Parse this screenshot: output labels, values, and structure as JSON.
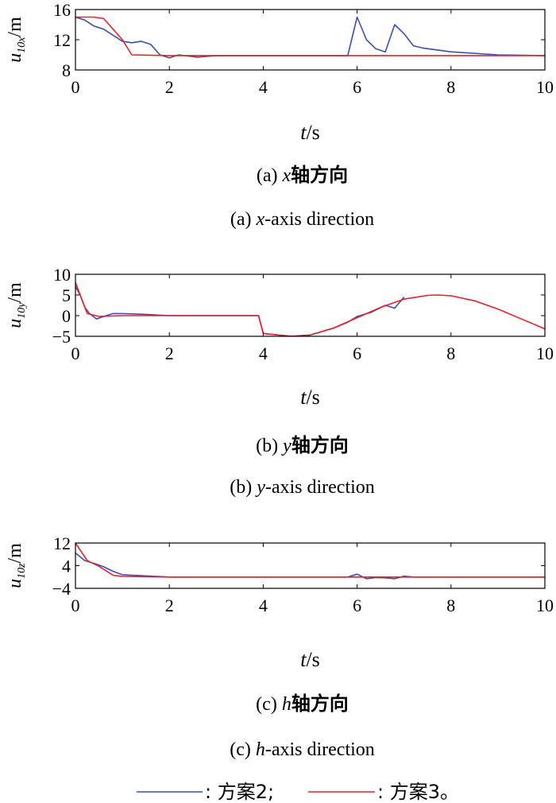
{
  "colors": {
    "series2": "#3a4fb0",
    "series3": "#e8202a",
    "axis": "#000000"
  },
  "legend": {
    "items": [
      {
        "label": ": 方案2;",
        "color": "#3a4fb0"
      },
      {
        "label": ": 方案3。",
        "color": "#e8202a"
      }
    ]
  },
  "chart_data": [
    {
      "type": "line",
      "ylabel": {
        "base": "u",
        "sub": "10x",
        "unit": "/m"
      },
      "xlabel": {
        "var": "t",
        "unit": "/s"
      },
      "caption_cn": {
        "prefix": "(a) ",
        "var": "x",
        "text": "轴方向"
      },
      "caption_en": {
        "prefix": "(a) ",
        "var": "x",
        "text": "-axis direction"
      },
      "xlim": [
        0,
        10
      ],
      "ylim": [
        8,
        16
      ],
      "xticks": [
        "0",
        "2",
        "4",
        "6",
        "8",
        "10"
      ],
      "yticks": [
        {
          "v": 8,
          "label": "8"
        },
        {
          "v": 12,
          "label": "12"
        },
        {
          "v": 16,
          "label": "16"
        }
      ],
      "series": [
        {
          "x": [
            0,
            0.2,
            0.4,
            0.6,
            0.8,
            1.0,
            1.2,
            1.4,
            1.6,
            1.8,
            2.0,
            2.2,
            2.6,
            3.0,
            5.8,
            6.0,
            6.2,
            6.4,
            6.6,
            6.8,
            7.0,
            7.2,
            7.4,
            8.0,
            9.0,
            10.0
          ],
          "y": [
            15.0,
            14.6,
            13.8,
            13.4,
            12.6,
            11.8,
            11.6,
            11.8,
            11.4,
            10.0,
            9.6,
            10.0,
            9.7,
            9.9,
            9.9,
            15.0,
            12.0,
            10.8,
            10.4,
            14.0,
            12.8,
            11.2,
            10.9,
            10.4,
            10.0,
            9.9
          ]
        },
        {
          "x": [
            0,
            0.4,
            0.6,
            1.0,
            1.2,
            2.0,
            10.0
          ],
          "y": [
            15.0,
            15.0,
            14.8,
            12.0,
            10.0,
            9.9,
            9.9
          ]
        }
      ]
    },
    {
      "type": "line",
      "ylabel": {
        "base": "u",
        "sub": "10y",
        "unit": "/m"
      },
      "xlabel": {
        "var": "t",
        "unit": "/s"
      },
      "caption_cn": {
        "prefix": "(b) ",
        "var": "y",
        "text": "轴方向"
      },
      "caption_en": {
        "prefix": "(b) ",
        "var": "y",
        "text": "-axis direction"
      },
      "xlim": [
        0,
        10
      ],
      "ylim": [
        -5,
        10
      ],
      "xticks": [
        "0",
        "2",
        "4",
        "6",
        "8",
        "10"
      ],
      "yticks": [
        {
          "v": -5,
          "label": "−5"
        },
        {
          "v": 0,
          "label": "0"
        },
        {
          "v": 5,
          "label": "5"
        },
        {
          "v": 10,
          "label": "10"
        }
      ],
      "series": [
        {
          "x": [
            0,
            0.1,
            0.2,
            0.3,
            0.45,
            0.6,
            0.8,
            1.0,
            1.5,
            2.0,
            3.0,
            3.9,
            4.0,
            4.6,
            5.0,
            5.5,
            5.8,
            6.0,
            6.3,
            6.6,
            6.8,
            7.0
          ],
          "y": [
            7.0,
            5.0,
            2.0,
            0.5,
            -0.8,
            -0.2,
            0.5,
            0.5,
            0.3,
            0.0,
            0.0,
            0.0,
            -4.3,
            -5.0,
            -4.7,
            -3.0,
            -1.6,
            -0.2,
            0.8,
            2.5,
            1.8,
            4.5
          ]
        },
        {
          "x": [
            0,
            0.25,
            0.5,
            1.0,
            2.0,
            3.0,
            3.9,
            4.0,
            4.6,
            5.0,
            5.5,
            6.0,
            6.5,
            7.0,
            7.5,
            7.7,
            8.0,
            8.5,
            9.0,
            9.5,
            10.0
          ],
          "y": [
            8.0,
            0.5,
            -0.2,
            0.0,
            0.0,
            0.0,
            0.0,
            -4.3,
            -5.0,
            -4.7,
            -3.0,
            -0.5,
            2.0,
            4.0,
            4.9,
            5.0,
            4.8,
            3.6,
            1.6,
            -0.8,
            -3.2
          ]
        }
      ]
    },
    {
      "type": "line",
      "ylabel": {
        "base": "u",
        "sub": "10z",
        "unit": "/m"
      },
      "xlabel": {
        "var": "t",
        "unit": "/s"
      },
      "caption_cn": {
        "prefix": "(c) ",
        "var": "h",
        "text": "轴方向"
      },
      "caption_en": {
        "prefix": "(c) ",
        "var": "h",
        "text": "-axis direction"
      },
      "xlim": [
        0,
        10
      ],
      "ylim": [
        -4,
        12
      ],
      "xticks": [
        "0",
        "2",
        "4",
        "6",
        "8",
        "10"
      ],
      "yticks": [
        {
          "v": -4,
          "label": "−4"
        },
        {
          "v": 4,
          "label": "4"
        },
        {
          "v": 12,
          "label": "12"
        }
      ],
      "series": [
        {
          "x": [
            0,
            0.2,
            0.4,
            0.6,
            0.8,
            1.0,
            1.4,
            2.0,
            5.8,
            6.0,
            6.2,
            6.4,
            6.6,
            6.8,
            7.0,
            7.2,
            10.0
          ],
          "y": [
            8.5,
            5.8,
            4.8,
            3.6,
            2.0,
            0.8,
            0.5,
            0.0,
            0.0,
            1.0,
            -0.6,
            -0.2,
            -0.3,
            -0.6,
            0.3,
            0.0,
            0.0
          ]
        },
        {
          "x": [
            0,
            0.25,
            0.5,
            0.8,
            1.0,
            1.5,
            2.0,
            10.0
          ],
          "y": [
            12.0,
            5.8,
            3.8,
            0.6,
            0.2,
            0.1,
            0.0,
            0.0
          ]
        }
      ]
    }
  ]
}
